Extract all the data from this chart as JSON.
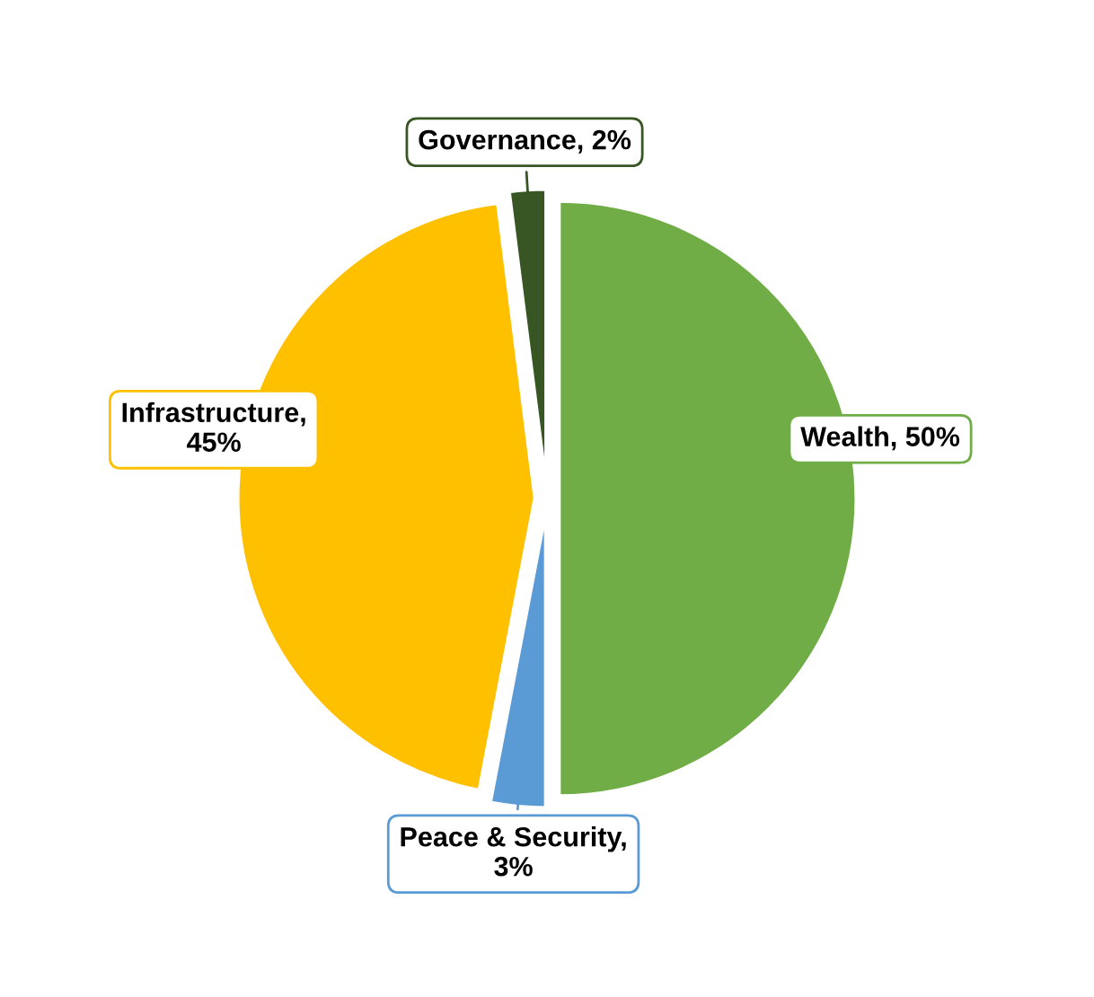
{
  "chart_data": {
    "type": "pie",
    "categories": [
      "Wealth",
      "Peace & Security",
      "Infrastructure",
      "Governance"
    ],
    "values": [
      50,
      3,
      45,
      2
    ],
    "colors": [
      "#70ad47",
      "#5b9bd5",
      "#ffc000",
      "#375623"
    ],
    "value_labels": [
      ", 50%",
      ", 3%",
      ", 45%",
      ", 2%"
    ],
    "legend": false
  }
}
